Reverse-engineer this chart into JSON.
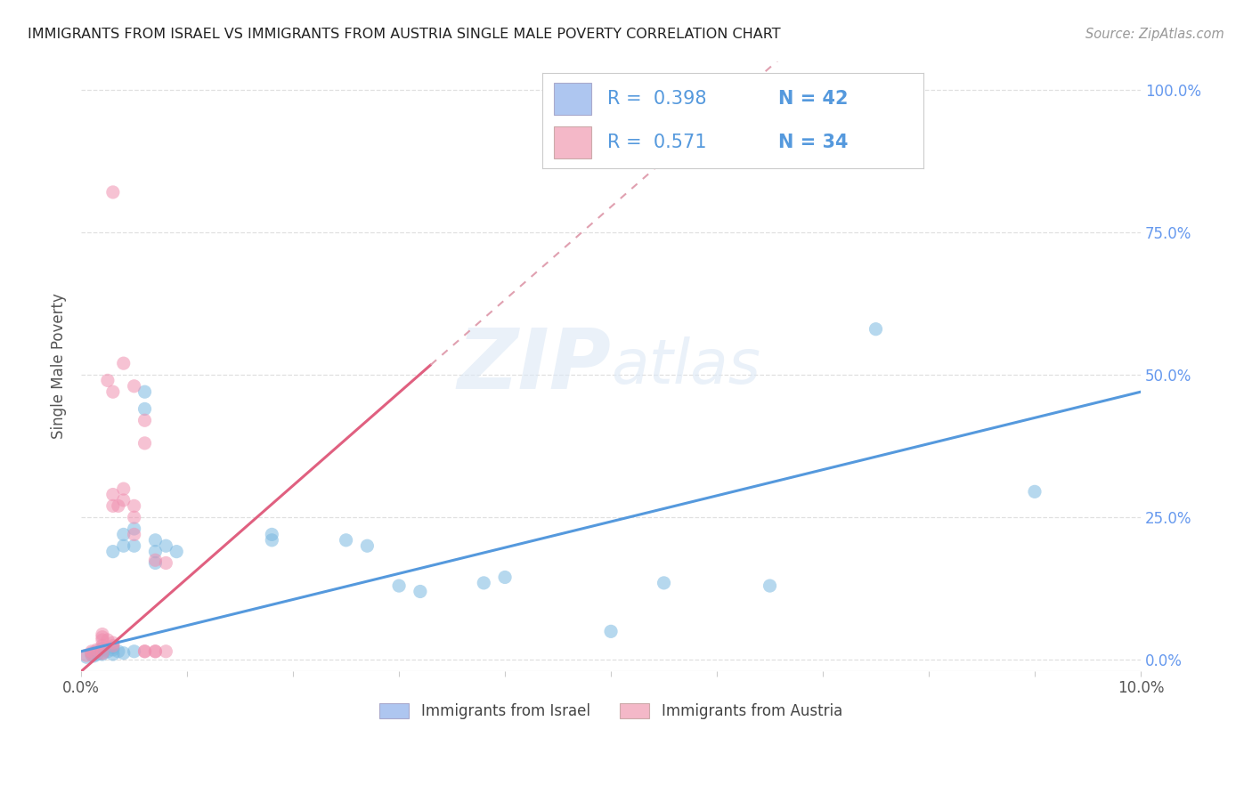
{
  "title": "IMMIGRANTS FROM ISRAEL VS IMMIGRANTS FROM AUSTRIA SINGLE MALE POVERTY CORRELATION CHART",
  "source": "Source: ZipAtlas.com",
  "ylabel": "Single Male Poverty",
  "legend_israel": {
    "R": 0.398,
    "N": 42,
    "color": "#aec6f0"
  },
  "legend_austria": {
    "R": 0.571,
    "N": 34,
    "color": "#f4b8c8"
  },
  "israel_color": "#7ab8e0",
  "austria_color": "#f090b0",
  "trend_israel_color": "#5599dd",
  "trend_austria_color": "#e06080",
  "trend_austria_dashed_color": "#e0a0b0",
  "watermark": "ZIPatlas",
  "israel_scatter": [
    [
      0.0005,
      0.005
    ],
    [
      0.001,
      0.008
    ],
    [
      0.001,
      0.012
    ],
    [
      0.0012,
      0.007
    ],
    [
      0.0015,
      0.01
    ],
    [
      0.0015,
      0.015
    ],
    [
      0.002,
      0.01
    ],
    [
      0.002,
      0.012
    ],
    [
      0.002,
      0.018
    ],
    [
      0.002,
      0.02
    ],
    [
      0.0025,
      0.015
    ],
    [
      0.003,
      0.01
    ],
    [
      0.003,
      0.018
    ],
    [
      0.003,
      0.022
    ],
    [
      0.003,
      0.19
    ],
    [
      0.0035,
      0.015
    ],
    [
      0.004,
      0.012
    ],
    [
      0.004,
      0.2
    ],
    [
      0.004,
      0.22
    ],
    [
      0.005,
      0.015
    ],
    [
      0.005,
      0.2
    ],
    [
      0.005,
      0.23
    ],
    [
      0.006,
      0.44
    ],
    [
      0.006,
      0.47
    ],
    [
      0.007,
      0.17
    ],
    [
      0.007,
      0.19
    ],
    [
      0.007,
      0.21
    ],
    [
      0.008,
      0.2
    ],
    [
      0.009,
      0.19
    ],
    [
      0.018,
      0.22
    ],
    [
      0.018,
      0.21
    ],
    [
      0.025,
      0.21
    ],
    [
      0.027,
      0.2
    ],
    [
      0.03,
      0.13
    ],
    [
      0.032,
      0.12
    ],
    [
      0.038,
      0.135
    ],
    [
      0.04,
      0.145
    ],
    [
      0.05,
      0.05
    ],
    [
      0.055,
      0.135
    ],
    [
      0.065,
      0.13
    ],
    [
      0.075,
      0.58
    ],
    [
      0.09,
      0.295
    ]
  ],
  "austria_scatter": [
    [
      0.0005,
      0.008
    ],
    [
      0.001,
      0.01
    ],
    [
      0.001,
      0.015
    ],
    [
      0.0015,
      0.018
    ],
    [
      0.002,
      0.012
    ],
    [
      0.002,
      0.025
    ],
    [
      0.002,
      0.035
    ],
    [
      0.002,
      0.04
    ],
    [
      0.002,
      0.045
    ],
    [
      0.0025,
      0.035
    ],
    [
      0.003,
      0.025
    ],
    [
      0.003,
      0.03
    ],
    [
      0.003,
      0.27
    ],
    [
      0.003,
      0.29
    ],
    [
      0.0035,
      0.27
    ],
    [
      0.004,
      0.28
    ],
    [
      0.004,
      0.3
    ],
    [
      0.005,
      0.22
    ],
    [
      0.005,
      0.25
    ],
    [
      0.005,
      0.27
    ],
    [
      0.006,
      0.38
    ],
    [
      0.006,
      0.42
    ],
    [
      0.006,
      0.015
    ],
    [
      0.007,
      0.015
    ],
    [
      0.007,
      0.175
    ],
    [
      0.008,
      0.015
    ],
    [
      0.008,
      0.17
    ],
    [
      0.003,
      0.82
    ],
    [
      0.004,
      0.52
    ],
    [
      0.0025,
      0.49
    ],
    [
      0.003,
      0.47
    ],
    [
      0.005,
      0.48
    ],
    [
      0.006,
      0.015
    ],
    [
      0.007,
      0.015
    ]
  ],
  "xlim": [
    0.0,
    0.1
  ],
  "ylim": [
    -0.02,
    1.05
  ],
  "yticks": [
    0.0,
    0.25,
    0.5,
    0.75,
    1.0
  ],
  "background_color": "#ffffff",
  "grid_color": "#e0e0e0",
  "legend_text_color": "#5599dd",
  "legend_R_label_color": "#333333"
}
